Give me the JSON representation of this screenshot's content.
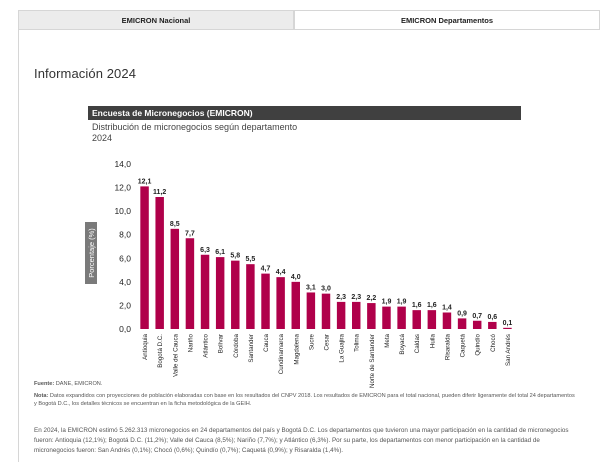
{
  "tabs": [
    {
      "label": "EMICRON Nacional"
    },
    {
      "label": "EMICRON Departamentos"
    }
  ],
  "page_title": "Información 2024",
  "chart_header": "Encuesta de Micronegocios (EMICRON)",
  "chart_subtitle": "Distribución de micronegocios según departamento",
  "chart_year": "2024",
  "chart_data": {
    "type": "bar",
    "title": "Distribución de micronegocios según departamento",
    "xlabel": "",
    "ylabel": "Porcentaje (%)",
    "ylim": [
      0,
      14
    ],
    "yticks": [
      "0,0",
      "2,0",
      "4,0",
      "6,0",
      "8,0",
      "10,0",
      "12,0",
      "14,0"
    ],
    "color": "#b0004a",
    "categories": [
      "Antioquia",
      "Bogotá D.C.",
      "Valle del Cauca",
      "Nariño",
      "Atlántico",
      "Bolívar",
      "Córdoba",
      "Santander",
      "Cauca",
      "Cundinamarca",
      "Magdalena",
      "Sucre",
      "Cesar",
      "La Guajira",
      "Tolima",
      "Norte de Santander",
      "Meta",
      "Boyacá",
      "Caldas",
      "Huila",
      "Risaralda",
      "Caquetá",
      "Quindío",
      "Chocó",
      "San Andrés"
    ],
    "values": [
      12.1,
      11.2,
      8.5,
      7.7,
      6.3,
      6.1,
      5.8,
      5.5,
      4.7,
      4.4,
      4.0,
      3.1,
      3.0,
      2.3,
      2.3,
      2.2,
      1.9,
      1.9,
      1.6,
      1.6,
      1.4,
      0.9,
      0.7,
      0.6,
      0.1
    ],
    "value_labels": [
      "12,1",
      "11,2",
      "8,5",
      "7,7",
      "6,3",
      "6,1",
      "5,8",
      "5,5",
      "4,7",
      "4,4",
      "4,0",
      "3,1",
      "3,0",
      "2,3",
      "2,3",
      "2,2",
      "1,9",
      "1,9",
      "1,6",
      "1,6",
      "1,4",
      "0,9",
      "0,7",
      "0,6",
      "0,1"
    ]
  },
  "source_label": "Fuente:",
  "source_text": "DANE, EMICRON.",
  "note_label": "Nota:",
  "note_text": "Datos expandidos con proyecciones de población elaboradas con base en los resultados del CNPV 2018. Los resultados de EMICRON para el total nacional, pueden diferir ligeramente del total 24 departamentos y Bogotá D.C., los detalles técnicos se encuentran en la ficha metodológica de la GEIH.",
  "paragraph": "En 2024, la EMICRON estimó 5.262.313 micronegocios en 24 departamentos del país y Bogotá D.C. Los departamentos que tuvieron una mayor participación en la cantidad de micronegocios fueron: Antioquia (12,1%); Bogotá D.C. (11,2%); Valle del Cauca (8,5%); Nariño (7,7%); y Atlántico (6,3%). Por su parte, los departamentos con menor participación en la cantidad de micronegocios fueron: San Andrés (0,1%); Chocó (0,6%); Quindío (0,7%); Caquetá (0,9%); y Risaralda (1,4%)."
}
